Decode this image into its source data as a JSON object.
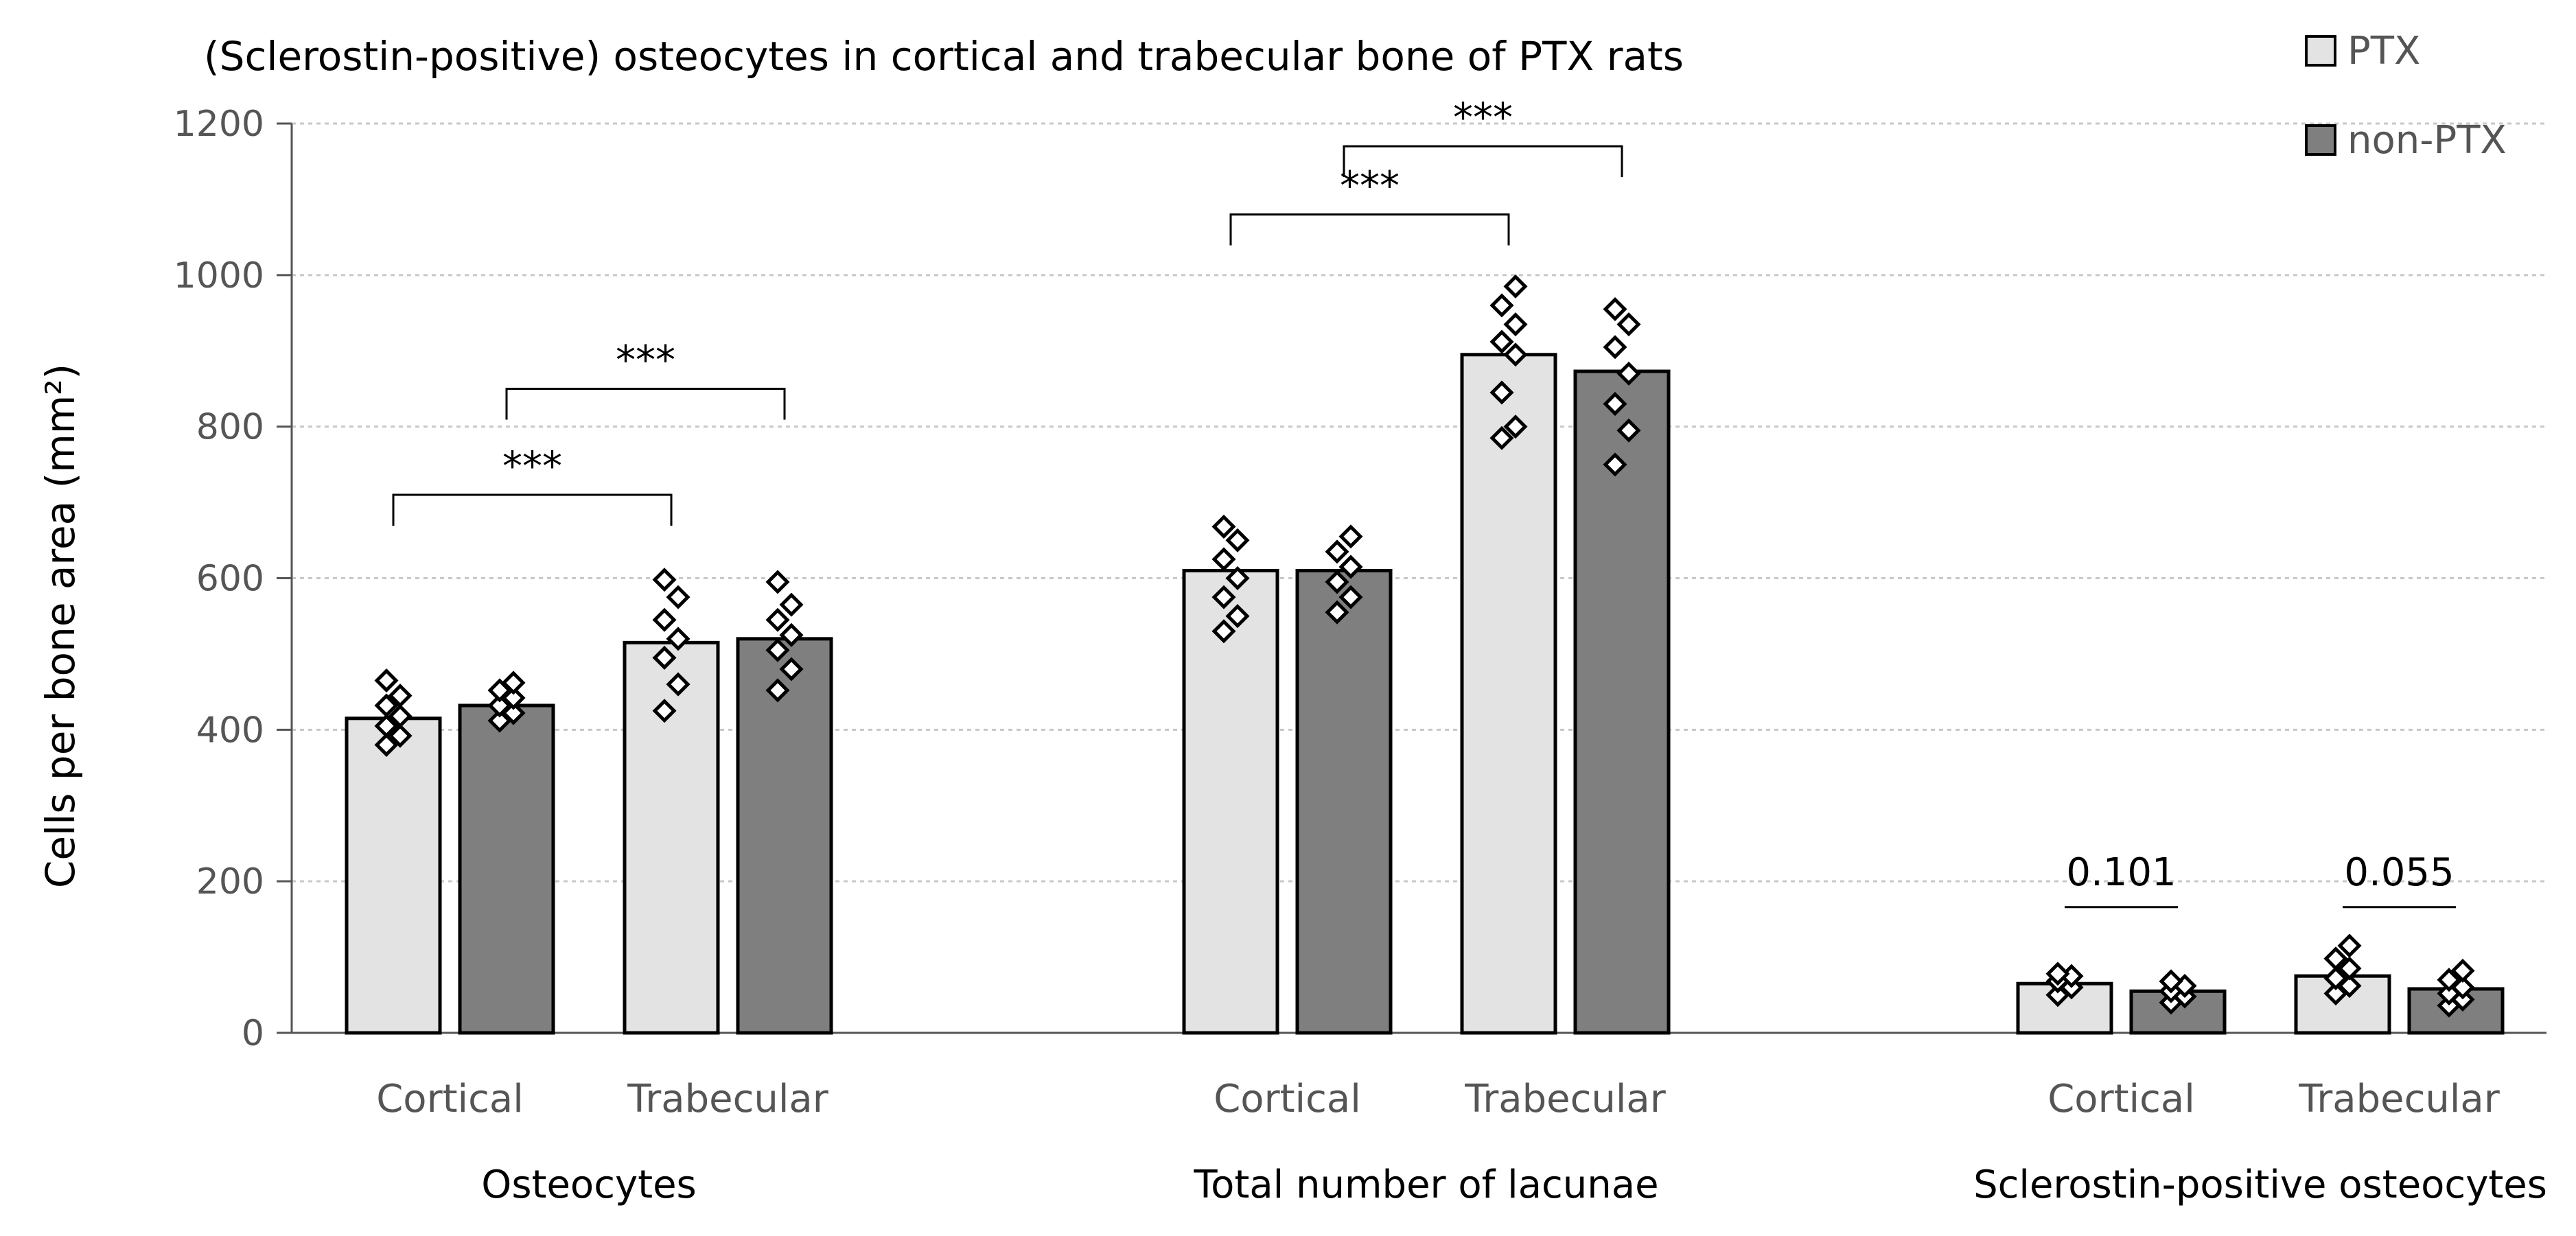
{
  "chart_data": {
    "type": "bar",
    "title": "(Sclerostin-positive) osteocytes in cortical and trabecular bone of PTX rats",
    "ylabel": "Cells per bone area (mm²)",
    "ylim": [
      0,
      1200
    ],
    "yticks": [
      0,
      200,
      400,
      600,
      800,
      1000,
      1200
    ],
    "grid": true,
    "legend_position": "top-right",
    "groups": [
      {
        "name": "Osteocytes",
        "categories": [
          "Cortical",
          "Trabecular"
        ]
      },
      {
        "name": "Total number of lacunae",
        "categories": [
          "Cortical",
          "Trabecular"
        ]
      },
      {
        "name": "Sclerostin-positive osteocytes",
        "categories": [
          "Cortical",
          "Trabecular"
        ]
      }
    ],
    "series": [
      {
        "name": "PTX",
        "color": "#e3e3e3",
        "values": [
          415,
          515,
          610,
          895,
          65,
          75
        ]
      },
      {
        "name": "non-PTX",
        "color": "#7f7f7f",
        "values": [
          432,
          520,
          610,
          873,
          55,
          58
        ]
      }
    ],
    "points": {
      "PTX": [
        [
          380,
          392,
          405,
          418,
          432,
          445,
          465
        ],
        [
          425,
          460,
          495,
          520,
          545,
          575,
          598
        ],
        [
          530,
          550,
          575,
          600,
          625,
          650,
          668
        ],
        [
          785,
          800,
          845,
          895,
          912,
          935,
          960,
          985
        ],
        [
          50,
          60,
          68,
          75,
          78
        ],
        [
          52,
          62,
          72,
          85,
          98,
          115
        ]
      ],
      "non-PTX": [
        [
          412,
          422,
          432,
          442,
          452,
          462
        ],
        [
          452,
          480,
          505,
          525,
          545,
          565,
          595
        ],
        [
          555,
          575,
          595,
          615,
          635,
          655
        ],
        [
          750,
          795,
          830,
          870,
          905,
          935,
          955
        ],
        [
          40,
          48,
          55,
          62,
          68
        ],
        [
          36,
          44,
          52,
          60,
          70,
          82
        ]
      ]
    },
    "annotations": [
      {
        "label": "***",
        "from": [
          0,
          "PTX"
        ],
        "to": [
          1,
          "PTX"
        ],
        "level": 710
      },
      {
        "label": "***",
        "from": [
          0,
          "non-PTX"
        ],
        "to": [
          1,
          "non-PTX"
        ],
        "level": 850
      },
      {
        "label": "***",
        "from": [
          2,
          "PTX"
        ],
        "to": [
          3,
          "PTX"
        ],
        "level": 1080
      },
      {
        "label": "***",
        "from": [
          2,
          "non-PTX"
        ],
        "to": [
          3,
          "non-PTX"
        ],
        "level": 1170
      },
      {
        "label": "0.101",
        "from": [
          4,
          "PTX"
        ],
        "to": [
          4,
          "non-PTX"
        ],
        "level": 175
      },
      {
        "label": "0.055",
        "from": [
          5,
          "PTX"
        ],
        "to": [
          5,
          "non-PTX"
        ],
        "level": 175
      }
    ]
  }
}
